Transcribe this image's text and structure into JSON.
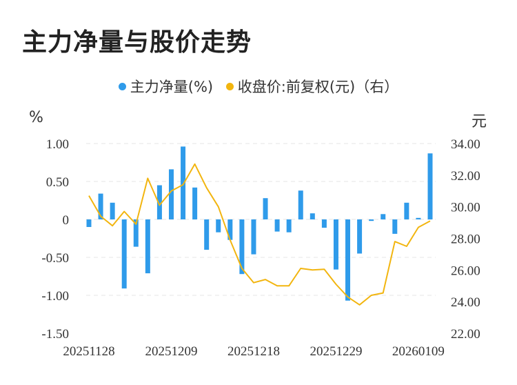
{
  "title": "主力净量与股价走势",
  "legend": [
    {
      "label": "主力净量(%)",
      "color": "#2f9bea"
    },
    {
      "label": "收盘价:前复权(元)（右）",
      "color": "#f2b50f"
    }
  ],
  "left_unit": "%",
  "right_unit": "元",
  "chart_data": {
    "type": "bar",
    "x_labels": [
      "20251128",
      "20251209",
      "20251218",
      "20251229",
      "20260109"
    ],
    "left_axis": {
      "min": -1.5,
      "max": 1.0,
      "ticks": [
        "1.00",
        "0.50",
        "0",
        "-0.50",
        "-1.00",
        "-1.50"
      ],
      "tick_values": [
        1.0,
        0.5,
        0,
        -0.5,
        -1.0,
        -1.5
      ]
    },
    "right_axis": {
      "min": 22.0,
      "max": 34.0,
      "ticks": [
        "34.00",
        "32.00",
        "30.00",
        "28.00",
        "26.00",
        "24.00",
        "22.00"
      ],
      "tick_values": [
        34,
        32,
        30,
        28,
        26,
        24,
        22
      ]
    },
    "series": [
      {
        "name": "主力净量(%)",
        "type": "bar",
        "color": "#2f9bea",
        "values": [
          -0.1,
          0.34,
          0.22,
          -0.91,
          -0.36,
          -0.71,
          0.45,
          0.66,
          0.96,
          0.42,
          -0.4,
          -0.17,
          -0.27,
          -0.72,
          -0.46,
          0.28,
          -0.16,
          -0.17,
          0.38,
          0.08,
          -0.11,
          -0.66,
          -1.07,
          -0.45,
          -0.02,
          0.07,
          -0.19,
          0.22,
          0.02,
          0.87
        ]
      },
      {
        "name": "收盘价:前复权(元)（右）",
        "type": "line",
        "color": "#f2b50f",
        "values": [
          30.7,
          29.4,
          28.8,
          29.7,
          28.9,
          31.8,
          30.1,
          31.0,
          31.4,
          32.7,
          31.2,
          30.0,
          27.9,
          26.1,
          25.2,
          25.4,
          25.0,
          25.0,
          26.1,
          26.0,
          26.05,
          25.1,
          24.3,
          23.8,
          24.4,
          24.55,
          27.8,
          27.5,
          28.7,
          29.1
        ]
      }
    ],
    "grid": true
  }
}
